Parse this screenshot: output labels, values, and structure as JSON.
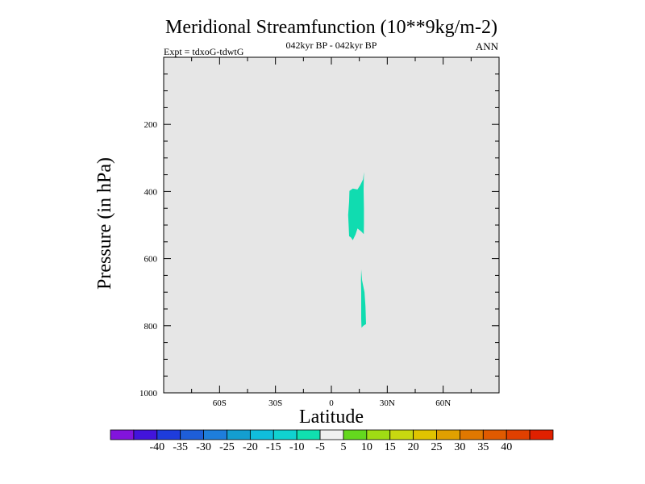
{
  "chart_data": {
    "type": "contour",
    "title": "Meridional Streamfunction (10**9kg/m-2)",
    "subtitle_left": "Expt = tdxoG-tdwtG",
    "subtitle_center": "042kyr BP - 042kyr BP",
    "subtitle_right": "ANN",
    "xlabel": "Latitude",
    "ylabel": "Pressure (in hPa)",
    "xlim": [
      -90,
      90
    ],
    "ylim": [
      1000,
      0
    ],
    "y_reversed": true,
    "grid": false,
    "plot_background": "#e6e6e6",
    "x_ticks": [
      {
        "value": -60,
        "label": "60S"
      },
      {
        "value": -30,
        "label": "30S"
      },
      {
        "value": 0,
        "label": "0"
      },
      {
        "value": 30,
        "label": "30N"
      },
      {
        "value": 60,
        "label": "60N"
      }
    ],
    "y_ticks": [
      {
        "value": 200,
        "label": "200"
      },
      {
        "value": 400,
        "label": "400"
      },
      {
        "value": 600,
        "label": "600"
      },
      {
        "value": 800,
        "label": "800"
      },
      {
        "value": 1000,
        "label": "1000"
      }
    ],
    "regions": [
      {
        "name": "",
        "range": [
          -10,
          -5
        ],
        "color": "#10dcb0",
        "points": [
          [
            9,
            470
          ],
          [
            9.5,
            430
          ],
          [
            9.7,
            398
          ],
          [
            11.5,
            391
          ],
          [
            14,
            394
          ],
          [
            15.5,
            381
          ],
          [
            17,
            364
          ],
          [
            17.5,
            342
          ],
          [
            17.3,
            395
          ],
          [
            17.5,
            450
          ],
          [
            17.5,
            498
          ],
          [
            17.4,
            527
          ],
          [
            16,
            519
          ],
          [
            14,
            510
          ],
          [
            13,
            528
          ],
          [
            11.5,
            545
          ],
          [
            10.5,
            537
          ],
          [
            9.5,
            533
          ],
          [
            9.3,
            505
          ]
        ]
      },
      {
        "name": "",
        "range": [
          -10,
          -5
        ],
        "color": "#10dcb0",
        "points": [
          [
            16,
            632
          ],
          [
            16.5,
            665
          ],
          [
            17.8,
            700
          ],
          [
            18.3,
            742
          ],
          [
            18.6,
            795
          ],
          [
            17.2,
            800
          ],
          [
            16.2,
            806
          ],
          [
            16,
            780
          ],
          [
            16,
            745
          ],
          [
            16,
            700
          ],
          [
            15.9,
            665
          ]
        ]
      }
    ],
    "colorbar": {
      "colors": [
        "#8214dc",
        "#4214dc",
        "#1e3cdc",
        "#1e5ed8",
        "#1e7edc",
        "#149ed0",
        "#10bedc",
        "#10d2d0",
        "#10e0b0",
        "#f0f0f0",
        "#64d81e",
        "#a0dc14",
        "#c8d810",
        "#e0c400",
        "#e0a000",
        "#e07800",
        "#e05a00",
        "#e04000",
        "#e02000"
      ],
      "labels": [
        "-40",
        "-35",
        "-30",
        "-25",
        "-20",
        "-15",
        "-10",
        "-5",
        "5",
        "10",
        "15",
        "20",
        "25",
        "30",
        "35",
        "40"
      ]
    }
  }
}
